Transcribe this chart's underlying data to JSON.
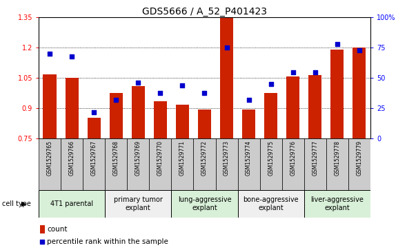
{
  "title": "GDS5666 / A_52_P401423",
  "samples": [
    "GSM1529765",
    "GSM1529766",
    "GSM1529767",
    "GSM1529768",
    "GSM1529769",
    "GSM1529770",
    "GSM1529771",
    "GSM1529772",
    "GSM1529773",
    "GSM1529774",
    "GSM1529775",
    "GSM1529776",
    "GSM1529777",
    "GSM1529778",
    "GSM1529779"
  ],
  "counts": [
    1.07,
    1.05,
    0.855,
    0.975,
    1.01,
    0.935,
    0.92,
    0.895,
    1.35,
    0.895,
    0.975,
    1.06,
    1.065,
    1.19,
    1.2
  ],
  "percentiles": [
    70,
    68,
    22,
    32,
    46,
    38,
    44,
    38,
    75,
    32,
    45,
    55,
    55,
    78,
    73
  ],
  "ylim_left": [
    0.75,
    1.35
  ],
  "ylim_right": [
    0,
    100
  ],
  "yticks_left": [
    0.75,
    0.9,
    1.05,
    1.2,
    1.35
  ],
  "yticks_right": [
    0,
    25,
    50,
    75,
    100
  ],
  "bar_color": "#CC2200",
  "marker_color": "#0000CC",
  "cell_types": [
    {
      "label": "4T1 parental",
      "start": 0,
      "end": 3,
      "color": "#d8f0d8"
    },
    {
      "label": "primary tumor\nexplant",
      "start": 3,
      "end": 6,
      "color": "#efefef"
    },
    {
      "label": "lung-aggressive\nexplant",
      "start": 6,
      "end": 9,
      "color": "#d8f0d8"
    },
    {
      "label": "bone-aggressive\nexplant",
      "start": 9,
      "end": 12,
      "color": "#efefef"
    },
    {
      "label": "liver-aggressive\nexplant",
      "start": 12,
      "end": 15,
      "color": "#d8f0d8"
    }
  ],
  "legend_count_label": "count",
  "legend_percentile_label": "percentile rank within the sample",
  "cell_type_label": "cell type",
  "sample_box_color": "#cccccc",
  "plot_bg_color": "#ffffff",
  "title_fontsize": 10,
  "tick_fontsize": 7,
  "sample_fontsize": 5.5,
  "cell_fontsize": 7,
  "legend_fontsize": 7.5
}
